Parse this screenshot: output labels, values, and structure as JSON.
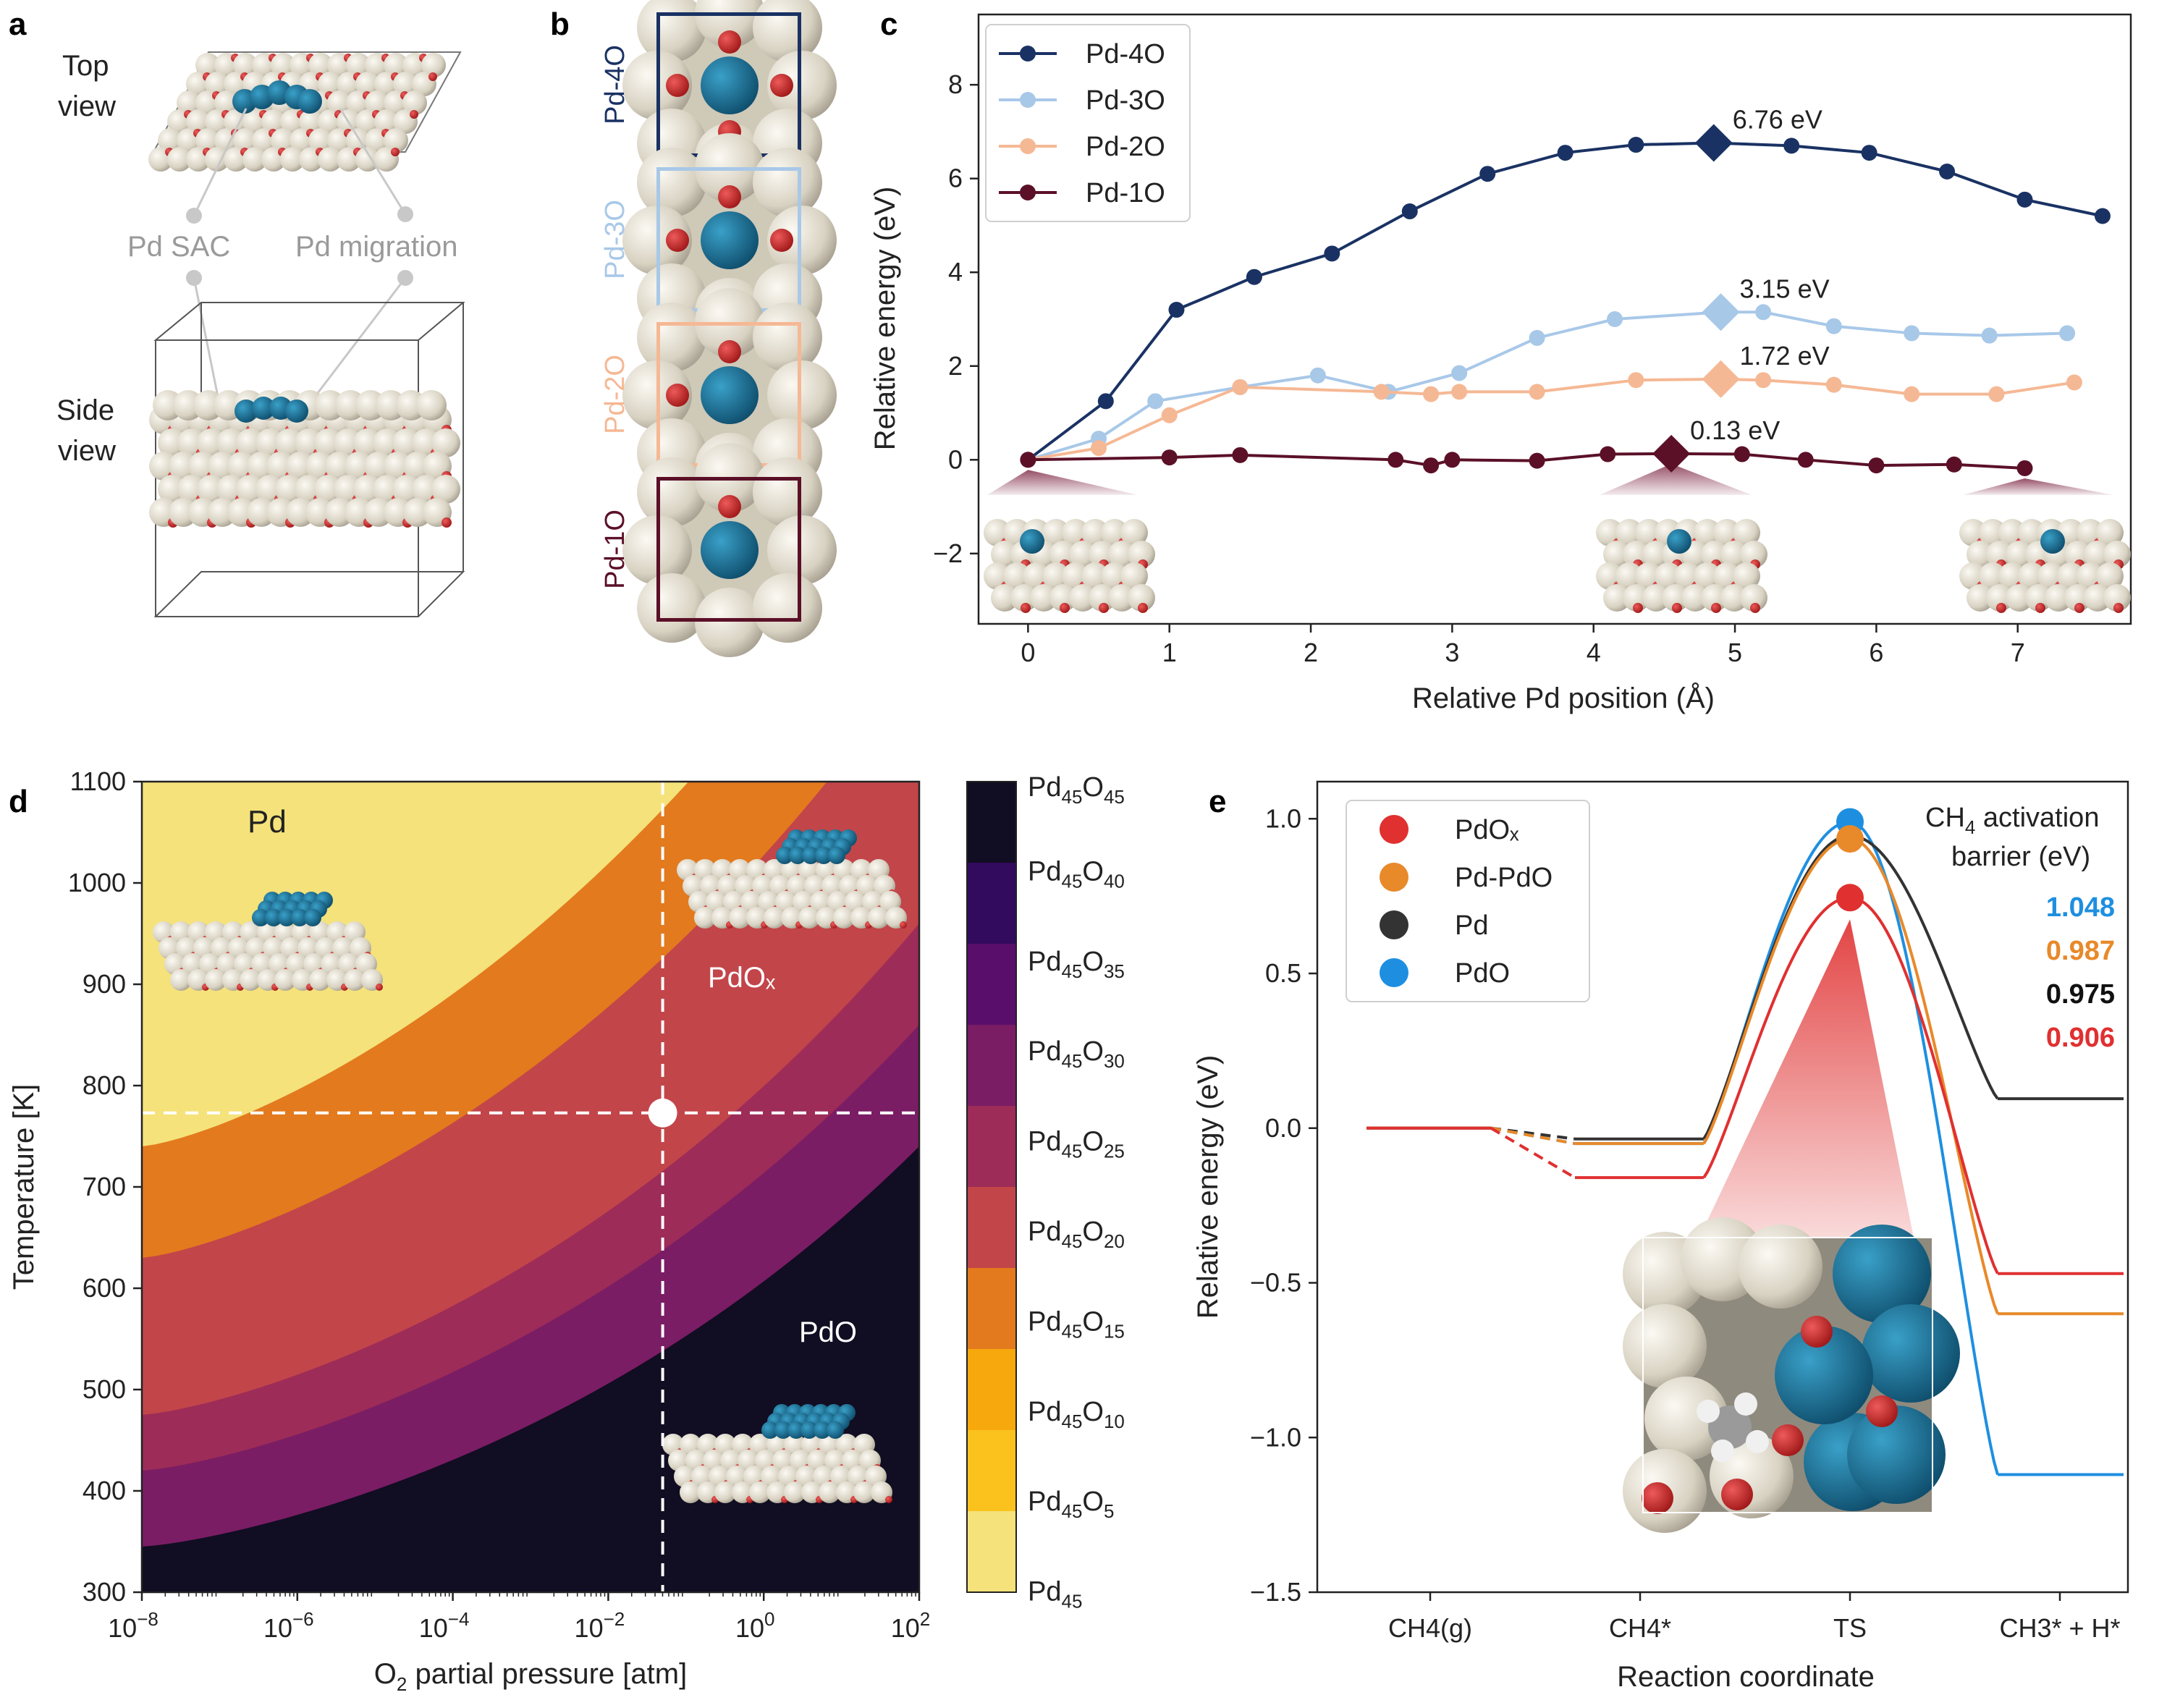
{
  "panel_letters": {
    "a": "a",
    "b": "b",
    "c": "c",
    "d": "d",
    "e": "e"
  },
  "panel_a": {
    "top_view": [
      "Top",
      "view"
    ],
    "side_view": [
      "Side",
      "view"
    ],
    "label_sac": "Pd SAC",
    "label_migration": "Pd migration"
  },
  "panel_b": {
    "tiles": [
      {
        "label": "Pd-4O",
        "color": "#1a3263"
      },
      {
        "label": "Pd-3O",
        "color": "#a8c8e8"
      },
      {
        "label": "Pd-2O",
        "color": "#f5b894"
      },
      {
        "label": "Pd-1O",
        "color": "#5b1028"
      }
    ]
  },
  "colors": {
    "pd4o": "#1a3263",
    "pd3o": "#a8c8e8",
    "pd2o": "#f5b894",
    "pd1o": "#5b1028",
    "pdox": "#e03030",
    "pdpdo": "#e8892a",
    "pd": "#333333",
    "pdo": "#1e8fe0",
    "surface": "#e8e3d6",
    "oxygen": "#cc2a2a",
    "palladium": "#1a6e94"
  },
  "chart_data": [
    {
      "id": "c",
      "type": "line",
      "xlabel": "Relative Pd position (Å)",
      "ylabel": "Relative energy (eV)",
      "xlim": [
        -0.35,
        7.8
      ],
      "ylim": [
        -3.5,
        9.5
      ],
      "xticks": [
        0,
        1,
        2,
        3,
        4,
        5,
        6,
        7
      ],
      "yticks": [
        -2,
        0,
        2,
        4,
        6,
        8
      ],
      "series": [
        {
          "name": "Pd-4O",
          "color": "#1a3263",
          "x": [
            0,
            0.55,
            1.05,
            1.6,
            2.15,
            2.7,
            3.25,
            3.8,
            4.3,
            4.85,
            5.4,
            5.95,
            6.5,
            7.05,
            7.6
          ],
          "y": [
            0,
            1.25,
            3.2,
            3.9,
            4.4,
            5.3,
            6.1,
            6.55,
            6.72,
            6.76,
            6.7,
            6.55,
            6.15,
            5.55,
            5.2
          ],
          "max_index": 9,
          "max_label": "6.76 eV"
        },
        {
          "name": "Pd-3O",
          "color": "#a8c8e8",
          "x": [
            0,
            0.5,
            0.9,
            1.5,
            2.05,
            2.55,
            3.05,
            3.6,
            4.15,
            4.9,
            5.2,
            5.7,
            6.25,
            6.8,
            7.35
          ],
          "y": [
            0,
            0.45,
            1.25,
            1.55,
            1.8,
            1.45,
            1.85,
            2.6,
            3.0,
            3.15,
            3.15,
            2.85,
            2.7,
            2.65,
            2.7
          ],
          "max_index": 9,
          "max_label": "3.15 eV"
        },
        {
          "name": "Pd-2O",
          "color": "#f5b894",
          "x": [
            0,
            0.5,
            1.0,
            1.5,
            2.5,
            2.85,
            3.05,
            3.6,
            4.3,
            4.9,
            5.2,
            5.7,
            6.25,
            6.85,
            7.4
          ],
          "y": [
            0,
            0.25,
            0.95,
            1.55,
            1.45,
            1.4,
            1.45,
            1.45,
            1.7,
            1.72,
            1.7,
            1.6,
            1.4,
            1.4,
            1.65
          ],
          "max_index": 9,
          "max_label": "1.72 eV"
        },
        {
          "name": "Pd-1O",
          "color": "#5b1028",
          "x": [
            0,
            1.0,
            1.5,
            2.6,
            2.85,
            3.0,
            3.6,
            4.1,
            4.55,
            5.05,
            5.5,
            6.0,
            6.55,
            7.05
          ],
          "y": [
            0,
            0.05,
            0.1,
            0.0,
            -0.12,
            0.0,
            -0.02,
            0.12,
            0.13,
            0.12,
            0.0,
            -0.12,
            -0.1,
            -0.18
          ],
          "max_index": 8,
          "max_label": "0.13 eV"
        }
      ],
      "legend_position": "top-left"
    },
    {
      "id": "d",
      "type": "heatmap",
      "xlabel_main": "O",
      "xlabel_sub": "2",
      "xlabel_rest": " partial pressure [atm]",
      "ylabel": "Temperature [K]",
      "xlim_log10": [
        -8,
        2
      ],
      "ylim": [
        300,
        1100
      ],
      "xticks": [
        {
          "base": "10",
          "exp": "−8"
        },
        {
          "base": "10",
          "exp": "−6"
        },
        {
          "base": "10",
          "exp": "−4"
        },
        {
          "base": "10",
          "exp": "−2"
        },
        {
          "base": "10",
          "exp": "0"
        },
        {
          "base": "10",
          "exp": "2"
        }
      ],
      "yticks": [
        300,
        400,
        500,
        600,
        700,
        800,
        900,
        1000,
        1100
      ],
      "marker": {
        "log10_pressure": -1.3,
        "temperature": 773
      },
      "phases": [
        {
          "name": "Pd",
          "levels": "Pd45"
        },
        {
          "name": "PdOₓ",
          "levels": "Pd45O15–Pd45O20"
        },
        {
          "name": "PdO",
          "levels": "Pd45O45"
        }
      ],
      "colorbar": [
        {
          "main": "Pd",
          "s1": "45",
          "o": "O",
          "s2": "45",
          "color": "#110d22"
        },
        {
          "main": "Pd",
          "s1": "45",
          "o": "O",
          "s2": "40",
          "color": "#320a5e"
        },
        {
          "main": "Pd",
          "s1": "45",
          "o": "O",
          "s2": "35",
          "color": "#5a0e6c"
        },
        {
          "main": "Pd",
          "s1": "45",
          "o": "O",
          "s2": "30",
          "color": "#7a1d64"
        },
        {
          "main": "Pd",
          "s1": "45",
          "o": "O",
          "s2": "25",
          "color": "#9d2c58"
        },
        {
          "main": "Pd",
          "s1": "45",
          "o": "O",
          "s2": "20",
          "color": "#c2454a"
        },
        {
          "main": "Pd",
          "s1": "45",
          "o": "O",
          "s2": "15",
          "color": "#e37a1e"
        },
        {
          "main": "Pd",
          "s1": "45",
          "o": "O",
          "s2": "10",
          "color": "#f6a80c"
        },
        {
          "main": "Pd",
          "s1": "45",
          "o": "O",
          "s2": "5",
          "color": "#fbc21e"
        },
        {
          "main": "Pd",
          "s1": "45",
          "o": "",
          "s2": "",
          "color": "#f5e27a"
        }
      ]
    },
    {
      "id": "e",
      "type": "line",
      "xlabel": "Reaction coordinate",
      "ylabel": "Relative energy (eV)",
      "ylim": [
        -1.5,
        1.12
      ],
      "yticks": [
        -1.5,
        -1.0,
        -0.5,
        0.0,
        0.5,
        1.0
      ],
      "ytick_labels": [
        "−1.5",
        "−1.0",
        "−0.5",
        "0.0",
        "0.5",
        "1.0"
      ],
      "categories": [
        "CH4(g)",
        "CH4*",
        "TS",
        "CH3* + H*"
      ],
      "series": [
        {
          "name": "PdOₓ",
          "color": "#e03030",
          "values": [
            0.0,
            -0.16,
            0.745,
            -0.47
          ]
        },
        {
          "name": "Pd-PdO",
          "color": "#e8892a",
          "values": [
            0.0,
            -0.05,
            0.935,
            -0.6
          ]
        },
        {
          "name": "Pd",
          "color": "#333333",
          "values": [
            0.0,
            -0.035,
            0.945,
            0.095
          ]
        },
        {
          "name": "PdO",
          "color": "#1e8fe0",
          "values": [
            0.0,
            -0.05,
            0.99,
            -1.12
          ]
        }
      ],
      "barrier_title": "CH",
      "barrier_title_sub": "4",
      "barrier_title_rest": " activation",
      "barrier_title_line2": "barrier (eV)",
      "barriers": [
        {
          "value": "1.048",
          "color": "#1e8fe0"
        },
        {
          "value": "0.987",
          "color": "#e8892a"
        },
        {
          "value": "0.975",
          "color": "#111111"
        },
        {
          "value": "0.906",
          "color": "#e03030"
        }
      ]
    }
  ]
}
